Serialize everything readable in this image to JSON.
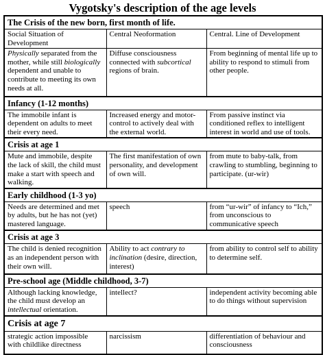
{
  "title": "Vygotsky's description of the age levels",
  "sections": [
    {
      "title": "The Crisis of the new born, first month of life.",
      "rows": [
        [
          [
            "Social Situation of Development"
          ],
          [
            "Central Neoformation"
          ],
          [
            "Central. Line of Development"
          ]
        ],
        [
          [
            {
              "italic": "Physically"
            },
            " separated from the mother, while still ",
            {
              "italic": "biologically"
            },
            " dependent and unable to contribute to meeting its own needs at all."
          ],
          [
            "Diffuse consciousness connected with ",
            {
              "italic": "subcortical"
            },
            " regions of brain."
          ],
          [
            "From beginning of mental life up to ability to respond to stimuli from other people."
          ]
        ]
      ]
    },
    {
      "title": "Infancy (1-12 months)",
      "rows": [
        [
          [
            "The immobile infant is dependent on adults to meet their every need."
          ],
          [
            "Increased energy and motor-control to actively deal with the external world."
          ],
          [
            "From passive instinct via conditioned reflex to intelligent interest in world and use of tools."
          ]
        ]
      ]
    },
    {
      "title": "Crisis at age 1",
      "rows": [
        [
          [
            "Mute and immobile, despite the lack of skill, the child must make a start with speech and walking."
          ],
          [
            "The first manifestation of own personality, and development of own will."
          ],
          [
            "from mute to baby-talk, from crawling to stumbling, beginning to participate. (ur-wir)"
          ]
        ]
      ]
    },
    {
      "title": "Early childhood (1-3 yo)",
      "rows": [
        [
          [
            "Needs are determined and met by adults, but he has not (yet) mastered language."
          ],
          [
            "speech"
          ],
          [
            "from “ur-wir” of infancy to “Ich,” from unconscious to communicative speech"
          ]
        ]
      ]
    },
    {
      "title": "Crisis at age 3",
      "rows": [
        [
          [
            "The child is denied recognition as an independent person with their own will."
          ],
          [
            "Ability to act ",
            {
              "italic": "contrary to inclination"
            },
            " (desire, direction, interest)"
          ],
          [
            "from ability to control self to ability to determine self."
          ]
        ]
      ]
    },
    {
      "title": "Pre-school age (Middle childhood, 3-7)",
      "rows": [
        [
          [
            "Although lacking knowledge, the child must develop an ",
            {
              "italic": "intellectual"
            },
            " orientation."
          ],
          [
            "intellect?"
          ],
          [
            "independent activity becoming able to do things without supervision"
          ]
        ]
      ]
    },
    {
      "title": "Crisis at age 7",
      "rows": [
        [
          [
            "strategic action impossible with childlike directness"
          ],
          [
            "narcissism"
          ],
          [
            "differentiation of behaviour and consciousness"
          ]
        ]
      ]
    }
  ]
}
